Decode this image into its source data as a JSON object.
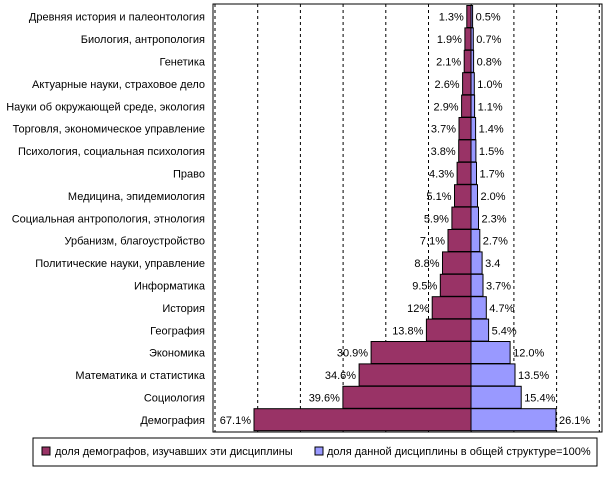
{
  "chart_data": {
    "type": "bar",
    "orientation": "horizontal",
    "layout": "diverging",
    "categories": [
      "Древняя история и палеонтология",
      "Биология, антропология",
      "Генетика",
      "Актуарные науки, страховое дело",
      "Науки об окружающей среде, экология",
      "Торговля, экономическое управление",
      "Психология, социальная психология",
      "Право",
      "Медицина, эпидемиология",
      "Социальная антропология, этнология",
      "Урбанизм, благоустройство",
      "Политические науки, управление",
      "Информатика",
      "История",
      "География",
      "Экономика",
      "Математика и статистика",
      "Социология",
      "Демография"
    ],
    "series": [
      {
        "name": "доля демографов, изучавших эти дисциплины",
        "side": "left",
        "color": "#993366",
        "values": [
          1.3,
          1.9,
          2.1,
          2.6,
          2.9,
          3.7,
          3.8,
          4.3,
          5.1,
          5.9,
          7.1,
          8.8,
          9.5,
          12,
          13.8,
          30.9,
          34.6,
          39.6,
          67.1
        ],
        "labels": [
          "1.3%",
          "1.9%",
          "2.1%",
          "2.6%",
          "2.9%",
          "3.7%",
          "3.8%",
          "4.3%",
          "5.1%",
          "5.9%",
          "7.1%",
          "8.8%",
          "9.5%",
          "12%",
          "13.8%",
          "30.9%",
          "34.6%",
          "39.6%",
          "67.1%"
        ]
      },
      {
        "name": "доля данной дисциплины в общей структуре=100%",
        "side": "right",
        "color": "#9999FF",
        "values": [
          0.5,
          0.7,
          0.8,
          1.0,
          1.1,
          1.4,
          1.5,
          1.7,
          2.0,
          2.3,
          2.7,
          3.4,
          3.7,
          4.7,
          5.4,
          12.0,
          13.5,
          15.4,
          26.1
        ],
        "labels": [
          "0.5%",
          "0.7%",
          "0.8%",
          "1.0%",
          "1.1%",
          "1.4%",
          "1.5%",
          "1.7%",
          "2.0%",
          "2.3%",
          "2.7%",
          "3.4",
          "3.7%",
          "4.7%",
          "5.4%",
          "12.0%",
          "13.5%",
          "15.4%",
          "26.1%"
        ]
      }
    ],
    "grid": "vertical-dashed",
    "legend": "bottom"
  }
}
